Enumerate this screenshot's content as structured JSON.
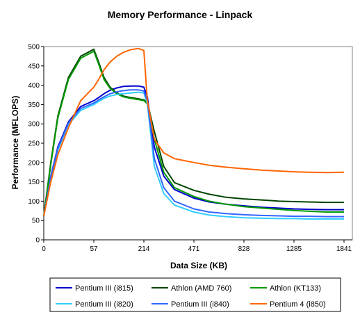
{
  "chart_data": {
    "type": "line",
    "title": "Memory Performance - Linpack",
    "xlabel": "Data Size (KB)",
    "ylabel": "Performance (MFLOPS)",
    "x_tick_labels": [
      "0",
      "57",
      "214",
      "471",
      "828",
      "1285",
      "1841"
    ],
    "x_tick_values": [
      0,
      57,
      214,
      471,
      828,
      1285,
      1841
    ],
    "y_ticks": [
      0,
      50,
      100,
      150,
      200,
      250,
      300,
      350,
      400,
      450,
      500
    ],
    "ylim": [
      0,
      500
    ],
    "grid": "none",
    "legend_position": "bottom",
    "x": [
      0,
      8,
      16,
      28,
      42,
      57,
      72,
      89,
      108,
      129,
      150,
      173,
      197,
      214,
      232,
      268,
      316,
      371,
      471,
      580,
      700,
      828,
      1000,
      1150,
      1285,
      1450,
      1650,
      1841
    ],
    "series": [
      {
        "name": "Pentium III (i815)",
        "color": "#0000cc",
        "values": [
          62,
          165,
          240,
          305,
          345,
          360,
          368,
          378,
          387,
          393,
          397,
          398,
          398,
          395,
          370,
          240,
          165,
          130,
          108,
          98,
          92,
          88,
          84,
          82,
          80,
          79,
          78,
          78
        ]
      },
      {
        "name": "Athlon (AMD 760)",
        "color": "#004400",
        "values": [
          62,
          200,
          320,
          420,
          475,
          493,
          460,
          420,
          395,
          380,
          372,
          368,
          365,
          362,
          355,
          280,
          190,
          148,
          128,
          118,
          110,
          106,
          103,
          100,
          99,
          98,
          97,
          97
        ]
      },
      {
        "name": "Athlon (KT133)",
        "color": "#009900",
        "values": [
          62,
          195,
          315,
          415,
          470,
          488,
          455,
          415,
          392,
          378,
          370,
          366,
          363,
          360,
          352,
          260,
          175,
          135,
          112,
          100,
          92,
          86,
          82,
          79,
          76,
          74,
          72,
          72
        ]
      },
      {
        "name": "Pentium III (i820)",
        "color": "#33ccff",
        "values": [
          62,
          160,
          232,
          298,
          335,
          350,
          358,
          366,
          372,
          376,
          378,
          380,
          382,
          380,
          352,
          190,
          120,
          90,
          72,
          64,
          60,
          57,
          56,
          55,
          55,
          54,
          54,
          54
        ]
      },
      {
        "name": "Pentium III (i840)",
        "color": "#3366ff",
        "values": [
          62,
          163,
          236,
          302,
          340,
          354,
          362,
          370,
          378,
          383,
          386,
          388,
          388,
          385,
          360,
          210,
          135,
          100,
          80,
          72,
          68,
          65,
          63,
          62,
          61,
          61,
          60,
          60
        ]
      },
      {
        "name": "Pentium 4 (i850)",
        "color": "#ff6600",
        "values": [
          62,
          150,
          220,
          290,
          360,
          395,
          415,
          440,
          460,
          475,
          485,
          492,
          495,
          490,
          360,
          260,
          225,
          210,
          200,
          193,
          188,
          184,
          180,
          178,
          176,
          175,
          174,
          175
        ]
      }
    ]
  }
}
